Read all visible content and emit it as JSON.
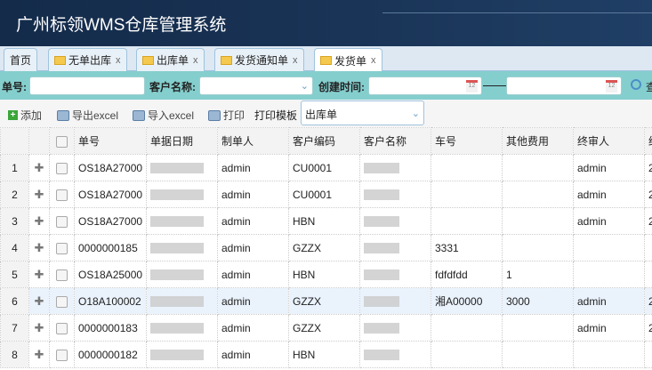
{
  "app": {
    "title": "广州标领WMS仓库管理系统"
  },
  "tabs": [
    {
      "label": "首页",
      "closable": false
    },
    {
      "label": "无单出库",
      "closable": true
    },
    {
      "label": "出库单",
      "closable": true
    },
    {
      "label": "发货通知单",
      "closable": true
    },
    {
      "label": "发货单",
      "closable": true,
      "active": true
    }
  ],
  "close_glyph": "x",
  "search": {
    "order_no_label": "单号:",
    "order_no_value": "",
    "customer_label": "客户名称:",
    "customer_value": "",
    "created_label": "创建时间:",
    "date_from": "",
    "date_to": "",
    "search_label": "查"
  },
  "toolbar": {
    "add": "添加",
    "export": "导出excel",
    "import": "导入excel",
    "print": "打印",
    "template_label": "打印模板",
    "template_value": "出库单"
  },
  "table": {
    "columns": [
      "单号",
      "单据日期",
      "制单人",
      "客户编码",
      "客户名称",
      "车号",
      "其他费用",
      "终审人",
      "终"
    ],
    "rows": [
      {
        "n": "1",
        "no": "OS18A27000",
        "creator": "admin",
        "code": "CU0001",
        "plate": "",
        "fee": "",
        "auditor": "admin",
        "last": "2"
      },
      {
        "n": "2",
        "no": "OS18A27000",
        "creator": "admin",
        "code": "CU0001",
        "plate": "",
        "fee": "",
        "auditor": "admin",
        "last": "2"
      },
      {
        "n": "3",
        "no": "OS18A27000",
        "creator": "admin",
        "code": "HBN",
        "plate": "",
        "fee": "",
        "auditor": "admin",
        "last": "2"
      },
      {
        "n": "4",
        "no": "0000000185",
        "creator": "admin",
        "code": "GZZX",
        "plate": "3331",
        "fee": "",
        "auditor": "",
        "last": ""
      },
      {
        "n": "5",
        "no": "OS18A25000",
        "creator": "admin",
        "code": "HBN",
        "plate": "fdfdfdd",
        "fee": "1",
        "auditor": "",
        "last": ""
      },
      {
        "n": "6",
        "no": "O18A100002",
        "creator": "admin",
        "code": "GZZX",
        "plate": "湘A00000",
        "fee": "3000",
        "auditor": "admin",
        "last": "2",
        "highlighted": true
      },
      {
        "n": "7",
        "no": "0000000183",
        "creator": "admin",
        "code": "GZZX",
        "plate": "",
        "fee": "",
        "auditor": "admin",
        "last": "2"
      },
      {
        "n": "8",
        "no": "0000000182",
        "creator": "admin",
        "code": "HBN",
        "plate": "",
        "fee": "",
        "auditor": "",
        "last": ""
      }
    ]
  },
  "colors": {
    "header": "#1a3558",
    "search_bar": "#85cece",
    "row_highlight": "#eaf2fc"
  }
}
